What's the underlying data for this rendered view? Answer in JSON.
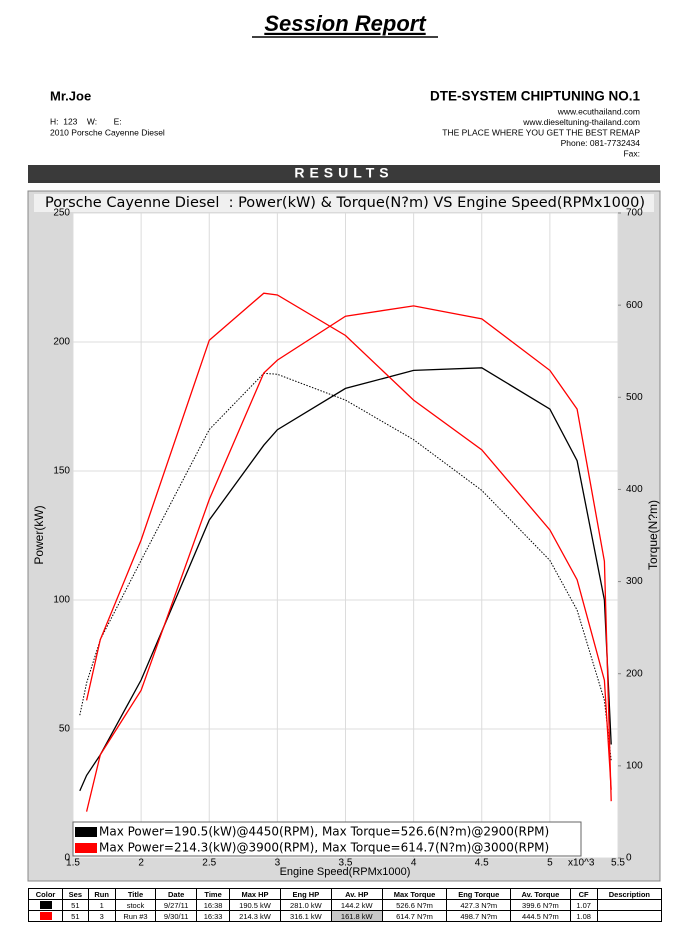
{
  "header": {
    "title": "Session Report"
  },
  "customer": {
    "name": "Mr.Joe",
    "contact": "H:  123    W:       E:",
    "vehicle": "2010 Porsche Cayenne Diesel"
  },
  "company": {
    "name": "DTE-SYSTEM CHIPTUNING NO.1",
    "lines": [
      "www.ecuthailand.com",
      "www.dieseltuning-thailand.com",
      "THE PLACE WHERE YOU GET THE BEST REMAP",
      "Phone: 081-7732434",
      "Fax:"
    ]
  },
  "banner": "RESULTS",
  "chart_data": {
    "type": "line",
    "title": "Porsche Cayenne Diesel  : Power(kW) & Torque(N?m) VS Engine Speed(RPMx1000)",
    "x_label": "Engine Speed(RPMx1000)",
    "x_multiplier": "x10^3",
    "y_label": "Power(kW)",
    "y2_label": "Torque(N?m)",
    "x": [
      1.55,
      1.6,
      1.7,
      2,
      2.5,
      2.9,
      3,
      3.5,
      4,
      4.5,
      5,
      5.2,
      5.4,
      5.45
    ],
    "xlim": [
      1.5,
      5.5
    ],
    "xticks": [
      1.5,
      2,
      2.5,
      3,
      3.5,
      4,
      4.5,
      5,
      5.5
    ],
    "ylim": [
      0,
      250
    ],
    "yticks": [
      0,
      50,
      100,
      150,
      200,
      250
    ],
    "y2lim": [
      0,
      700
    ],
    "y2ticks": [
      0,
      100,
      200,
      300,
      400,
      500,
      600,
      700
    ],
    "grid": true,
    "series": [
      {
        "color": "#000000",
        "style": "solid",
        "values": [
          26,
          32,
          40,
          69,
          131,
          160,
          166,
          182,
          189,
          190,
          174,
          154,
          100,
          44
        ]
      },
      {
        "color": "#000000",
        "style": "dotted",
        "axis": "y2",
        "values": [
          155,
          190,
          237,
          323,
          465,
          526,
          525,
          497,
          454,
          399,
          323,
          269,
          171,
          106
        ]
      },
      {
        "color": "#ff0000",
        "style": "solid",
        "values": [
          null,
          18,
          40,
          65,
          139,
          188,
          193,
          210,
          214,
          209,
          189,
          174,
          115,
          22
        ]
      },
      {
        "color": "#ff0000",
        "style": "solid",
        "axis": "y2",
        "values": [
          null,
          171,
          237,
          345,
          562,
          613,
          611,
          567,
          497,
          443,
          356,
          302,
          193,
          74
        ]
      }
    ],
    "legend": [
      {
        "color": "#000000",
        "text": "Max Power=190.5(kW)@4450(RPM), Max Torque=526.6(N?m)@2900(RPM)"
      },
      {
        "color": "#ff0000",
        "text": "Max Power=214.3(kW)@3900(RPM), Max Torque=614.7(N?m)@3000(RPM)"
      }
    ]
  },
  "table": {
    "columns": [
      "Color",
      "Ses",
      "Run",
      "Title",
      "Date",
      "Time",
      "Max HP",
      "Eng HP",
      "Av. HP",
      "Max Torque",
      "Eng Torque",
      "Av. Torque",
      "CF",
      "Description"
    ],
    "rows": [
      {
        "color": "#000000",
        "cells": [
          "51",
          "1",
          "stock",
          "9/27/11",
          "16:38",
          "190.5 kW",
          "281.0 kW",
          "144.2 kW",
          "526.6 N?m",
          "427.3 N?m",
          "399.6 N?m",
          "1.07"
        ]
      },
      {
        "color": "#ff0000",
        "cells": [
          "51",
          "3",
          "Run #3",
          "9/30/11",
          "16:33",
          "214.3 kW",
          "316.1 kW",
          "161.8 kW",
          "614.7 N?m",
          "498.7 N?m",
          "444.5 N?m",
          "1.08"
        ]
      }
    ]
  }
}
